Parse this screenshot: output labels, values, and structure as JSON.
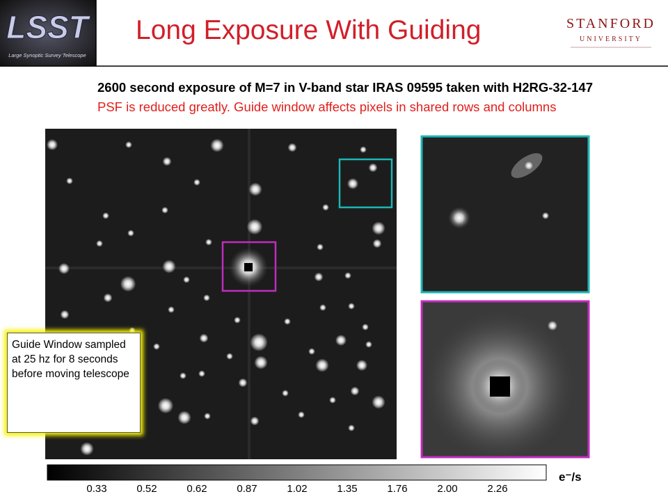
{
  "header": {
    "title": "Long Exposure With Guiding",
    "logo_left": "LSST",
    "logo_left_caption": "Large Synoptic Survey Telescope",
    "logo_right": "STANFORD",
    "logo_right_sub": "UNIVERSITY"
  },
  "subtitle": {
    "line1": "2600 second exposure of M=7 in V-band star IRAS 09595 taken with H2RG-32-147",
    "line2": "PSF is reduced greatly.  Guide window affects pixels in shared rows and columns"
  },
  "callout": "Guide Window sampled at 25 hz for 8 seconds before moving telescope",
  "colorbar": {
    "ticks": [
      "0.33",
      "0.52",
      "0.62",
      "0.87",
      "1.02",
      "1.35",
      "1.76",
      "2.00",
      "2.26"
    ],
    "unit": "e⁻/s"
  }
}
